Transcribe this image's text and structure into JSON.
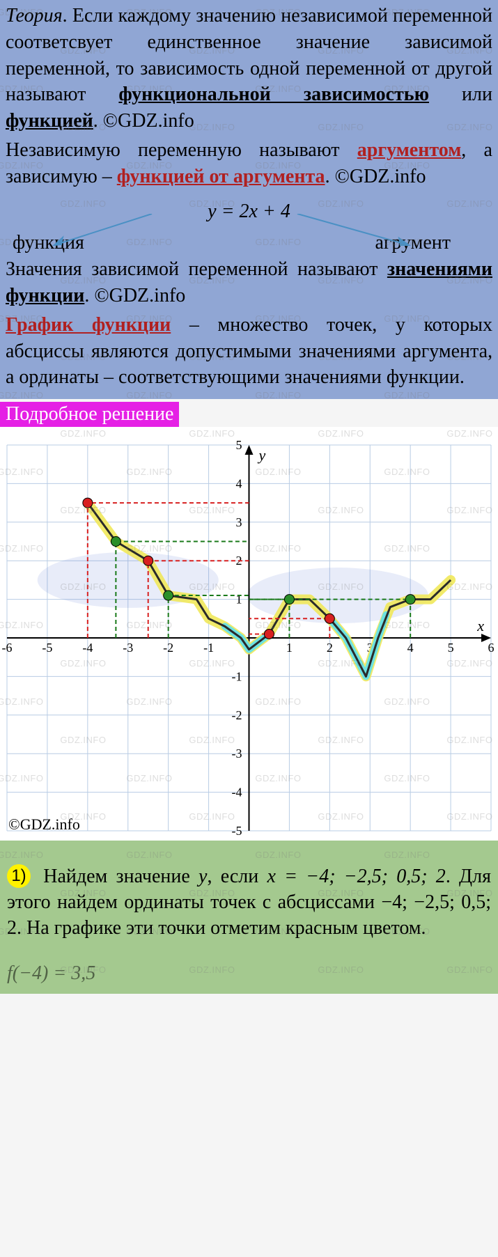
{
  "theory": {
    "label": "Теория",
    "p1a": ". Если каждому значению независимой переменной соответсвует единственное значение зависимой переменной, то зависимость одной переменной от другой называют ",
    "term1": "функциональной зависимостью",
    "p1b": " или ",
    "term2": "функцией",
    "p1c": ". ©GDZ.info",
    "p2a": "Независимую переменную называют ",
    "term3": "аргументом",
    "p2b": ", а зависимую – ",
    "term4": "функцией от аргумента",
    "p2c": ". ©GDZ.info",
    "equation": "y = 2x + 4",
    "eq_left": "функция",
    "eq_right": "агрумент",
    "p3a": "Значения зависимой переменной называют ",
    "term5": "значениями функции",
    "p3b": ". ©GDZ.info",
    "term6": "График функции",
    "p4a": " – множество точек, у которых абсциссы являются допустимыми значениями аргумента, а ординаты – соответствующими значениями функции."
  },
  "solution_header": "Подробное решение",
  "chart": {
    "type": "line",
    "xlim": [
      -6,
      6
    ],
    "ylim": [
      -5,
      5
    ],
    "xtick_step": 1,
    "ytick_step": 1,
    "background_color": "#ffffff",
    "grid_color": "#b8cce4",
    "axis_color": "#000000",
    "curve_color": "#2a2a2a",
    "glow_colors": {
      "yellow": "#f0e85a",
      "cyan": "#65e0e8"
    },
    "curve_points": [
      [
        -4,
        3.5
      ],
      [
        -3.3,
        2.5
      ],
      [
        -2.5,
        2
      ],
      [
        -2,
        1.1
      ],
      [
        -1.3,
        1
      ],
      [
        -1,
        0.5
      ],
      [
        -0.6,
        0.3
      ],
      [
        -0.2,
        0
      ],
      [
        0,
        -0.3
      ],
      [
        0.5,
        0.1
      ],
      [
        1,
        1
      ],
      [
        1.5,
        1
      ],
      [
        2,
        0.5
      ],
      [
        2.4,
        0
      ],
      [
        2.9,
        -1
      ],
      [
        3.2,
        0
      ],
      [
        3.5,
        0.8
      ],
      [
        4,
        1
      ],
      [
        4.5,
        1
      ],
      [
        5,
        1.5
      ]
    ],
    "cyan_segments": [
      [
        [
          -0.6,
          0.3
        ],
        [
          -0.2,
          0
        ],
        [
          0,
          -0.3
        ],
        [
          0.5,
          0.1
        ]
      ],
      [
        [
          2,
          0.5
        ],
        [
          2.4,
          0
        ],
        [
          2.9,
          -1
        ],
        [
          3.2,
          0
        ],
        [
          3.4,
          0.6
        ]
      ]
    ],
    "red_points": [
      {
        "x": -4,
        "y": 3.5
      },
      {
        "x": -2.5,
        "y": 2
      },
      {
        "x": 0.5,
        "y": 0.1
      },
      {
        "x": 2,
        "y": 0.5
      }
    ],
    "green_points": [
      {
        "x": -3.3,
        "y": 2.5
      },
      {
        "x": -2,
        "y": 1.1
      },
      {
        "x": 1,
        "y": 1
      },
      {
        "x": 4,
        "y": 1
      }
    ],
    "copyright": "©GDZ.info"
  },
  "answer": {
    "num": "1)",
    "text_a": "Найдем значение ",
    "y": "y",
    "text_b": ", если ",
    "xvals": "x = −4; −2,5; 0,5; 2",
    "text_c": ". Для этого найдем ординаты точек с абсциссами −4; −2,5; 0,5; 2. На графике эти точки отметим красным цветом.",
    "trail": "f(−4) = 3,5"
  },
  "watermark_text": "GDZ.INFO"
}
